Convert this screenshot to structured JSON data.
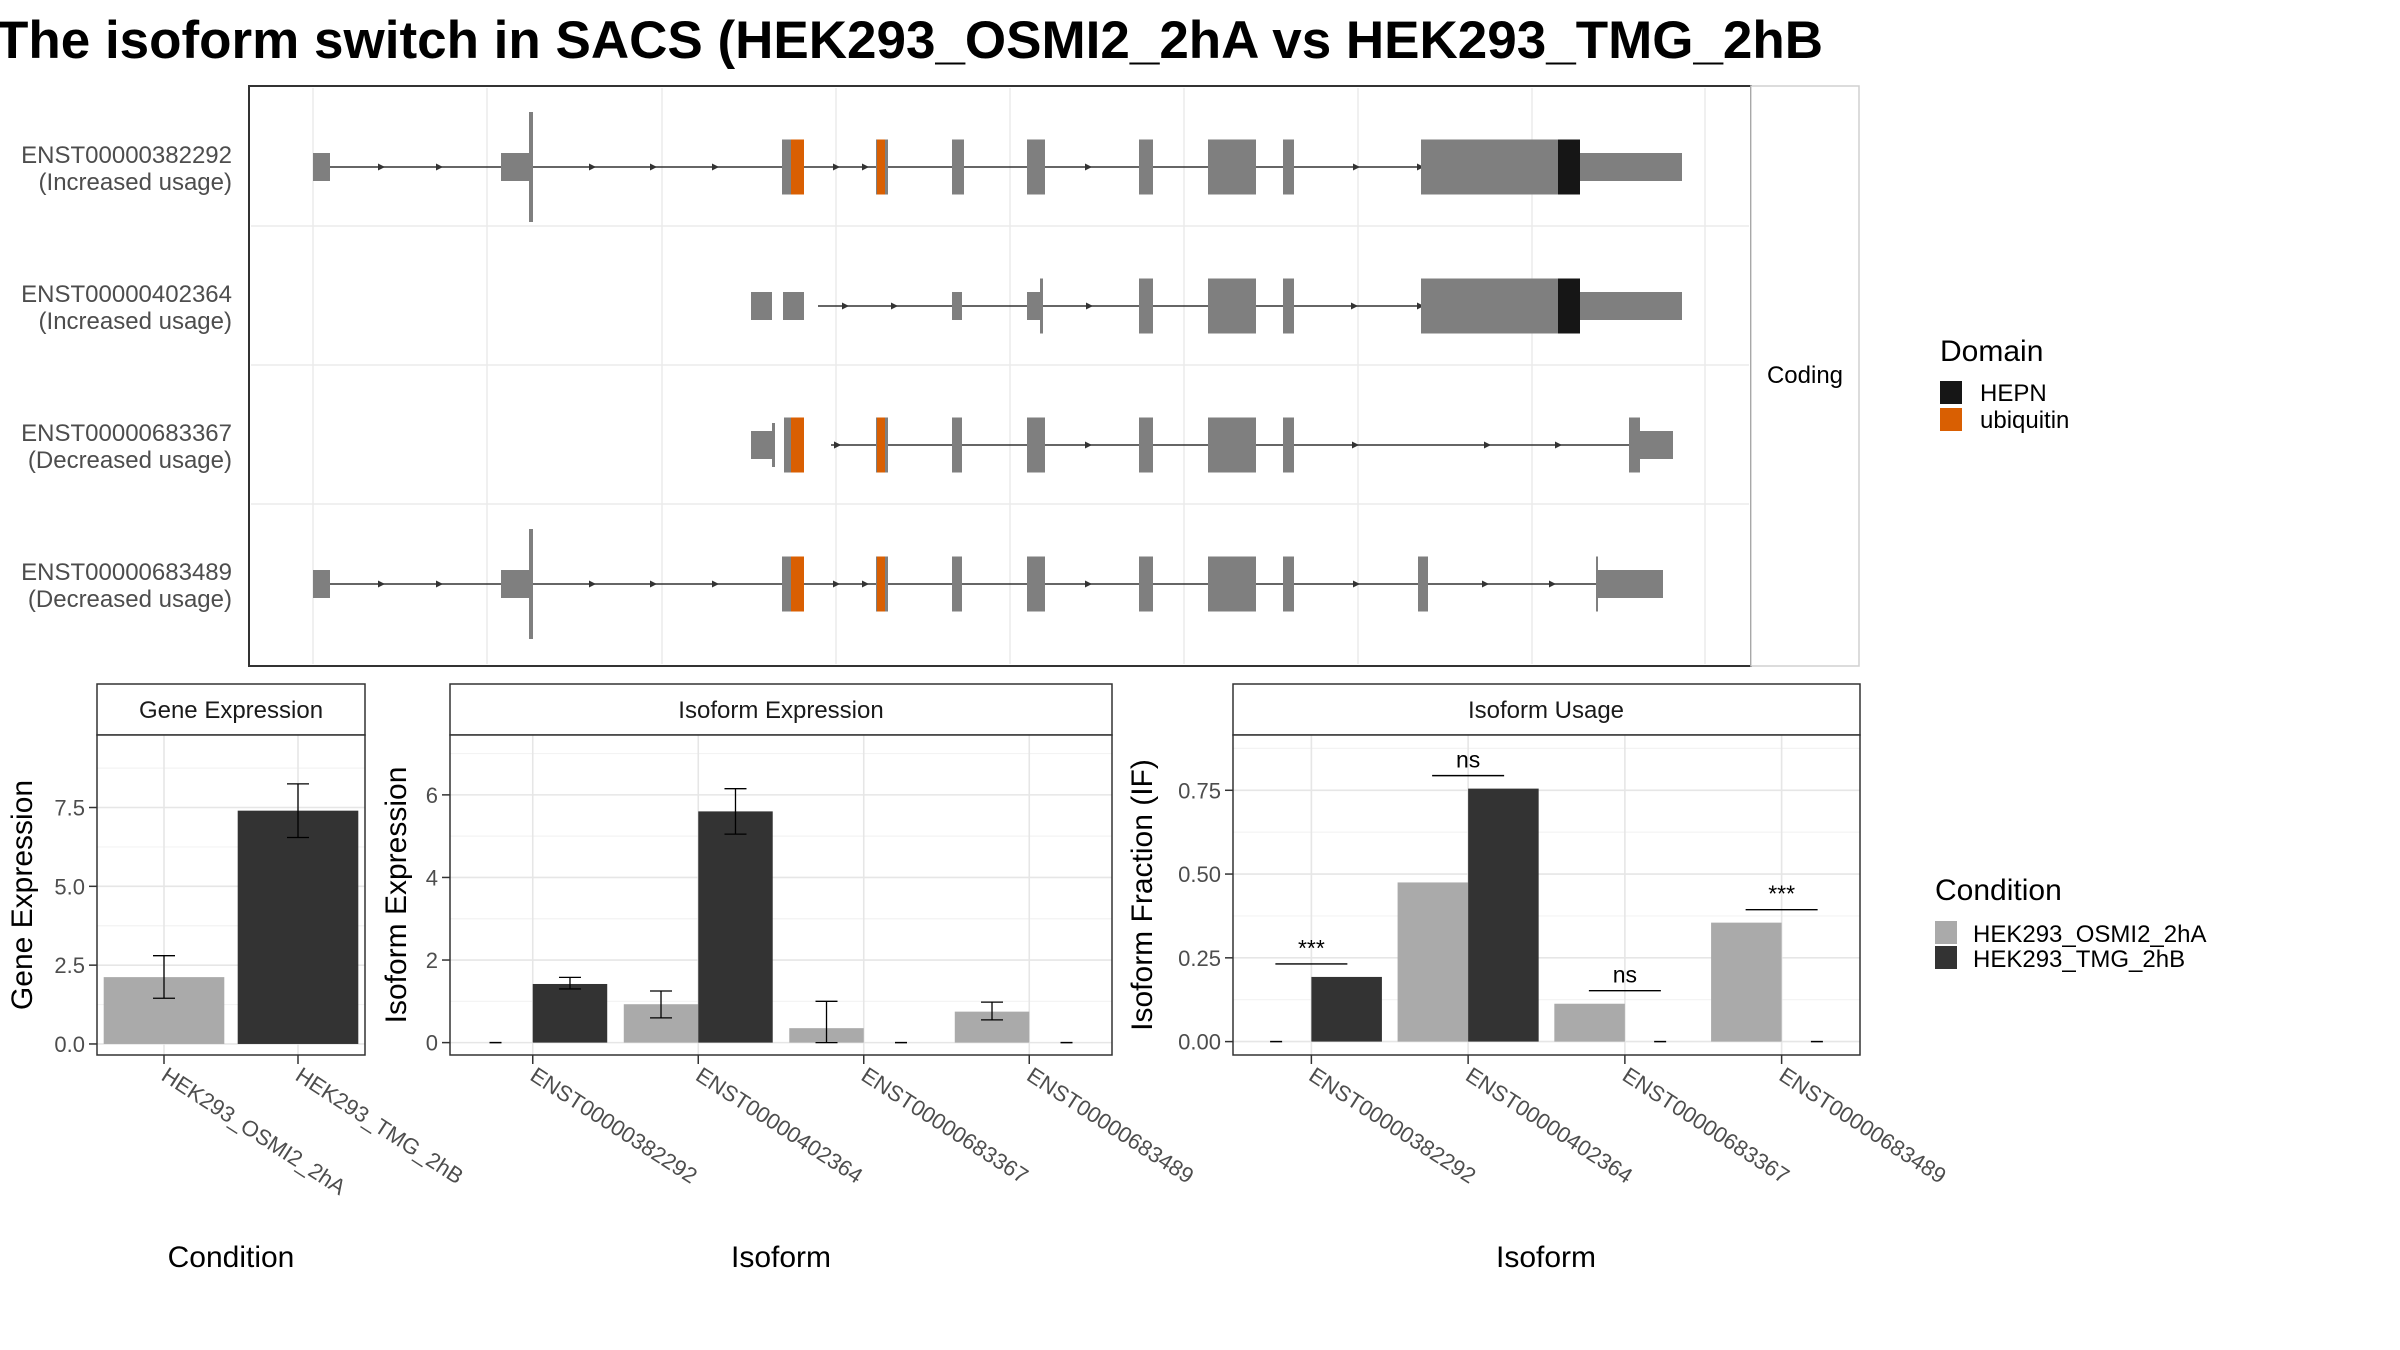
{
  "figure": {
    "title": "The isoform switch in SACS (HEK293_OSMI2_2hA vs HEK293_TMG_2hB",
    "facet_label": "Coding",
    "domain_legend": {
      "title": "Domain",
      "items": [
        {
          "label": "HEPN",
          "color": "#161616"
        },
        {
          "label": "ubiquitin",
          "color": "#d95f02"
        }
      ]
    },
    "condition_legend": {
      "title": "Condition",
      "items": [
        {
          "label": "HEK293_OSMI2_2hA",
          "color": "#aaaaaa"
        },
        {
          "label": "HEK293_TMG_2hB",
          "color": "#333333"
        }
      ]
    }
  },
  "chart_data": [
    {
      "type": "gene-structure",
      "feature_color": "#7f7f7f",
      "transcripts": [
        {
          "id": "ENST00000382292",
          "note": "(Increased usage)",
          "domains": [
            "ubiquitin",
            "HEPN"
          ]
        },
        {
          "id": "ENST00000402364",
          "note": "(Increased usage)",
          "domains": [
            "HEPN"
          ]
        },
        {
          "id": "ENST00000683367",
          "note": "(Decreased usage)",
          "domains": [
            "ubiquitin"
          ]
        },
        {
          "id": "ENST00000683489",
          "note": "(Decreased usage)",
          "domains": [
            "ubiquitin"
          ]
        }
      ]
    },
    {
      "type": "bar",
      "title": "Gene Expression",
      "xlabel": "Condition",
      "ylabel": "Gene Expression",
      "categories": [
        "HEK293_OSMI2_2hA",
        "HEK293_TMG_2hB"
      ],
      "values": [
        2.12,
        7.4
      ],
      "error_low": [
        1.45,
        6.55
      ],
      "error_high": [
        2.8,
        8.25
      ],
      "yticks": [
        0.0,
        2.5,
        5.0,
        7.5
      ],
      "ytick_labels": [
        "0.0",
        "2.5",
        "5.0",
        "7.5"
      ],
      "ylim": [
        -0.35,
        9.8
      ],
      "grid": true
    },
    {
      "type": "bar",
      "title": "Isoform Expression",
      "xlabel": "Isoform",
      "ylabel": "Isoform Expression",
      "categories": [
        "ENST00000382292",
        "ENST00000402364",
        "ENST00000683367",
        "ENST00000683489"
      ],
      "series": [
        {
          "name": "HEK293_OSMI2_2hA",
          "values": [
            0.0,
            0.93,
            0.35,
            0.75
          ],
          "error_low": [
            0.0,
            0.6,
            0.0,
            0.55
          ],
          "error_high": [
            0.0,
            1.25,
            1.0,
            0.98
          ]
        },
        {
          "name": "HEK293_TMG_2hB",
          "values": [
            1.42,
            5.6,
            0.0,
            0.0
          ],
          "error_low": [
            1.3,
            5.05,
            0.0,
            0.0
          ],
          "error_high": [
            1.58,
            6.15,
            0.0,
            0.0
          ]
        }
      ],
      "yticks": [
        0,
        2,
        4,
        6
      ],
      "ytick_labels": [
        "0",
        "2",
        "4",
        "6"
      ],
      "ylim": [
        -0.3,
        7.45
      ],
      "grid": true
    },
    {
      "type": "bar",
      "title": "Isoform Usage",
      "xlabel": "Isoform",
      "ylabel": "Isoform Fraction (IF)",
      "categories": [
        "ENST00000382292",
        "ENST00000402364",
        "ENST00000683367",
        "ENST00000683489"
      ],
      "series": [
        {
          "name": "HEK293_OSMI2_2hA",
          "values": [
            0.0,
            0.475,
            0.113,
            0.355
          ]
        },
        {
          "name": "HEK293_TMG_2hB",
          "values": [
            0.193,
            0.755,
            0.0,
            0.0
          ]
        }
      ],
      "significance": [
        "***",
        "ns",
        "ns",
        "***"
      ],
      "yticks": [
        0.0,
        0.25,
        0.5,
        0.75
      ],
      "ytick_labels": [
        "0.00",
        "0.25",
        "0.50",
        "0.75"
      ],
      "ylim": [
        -0.04,
        0.915
      ],
      "grid": true
    }
  ]
}
